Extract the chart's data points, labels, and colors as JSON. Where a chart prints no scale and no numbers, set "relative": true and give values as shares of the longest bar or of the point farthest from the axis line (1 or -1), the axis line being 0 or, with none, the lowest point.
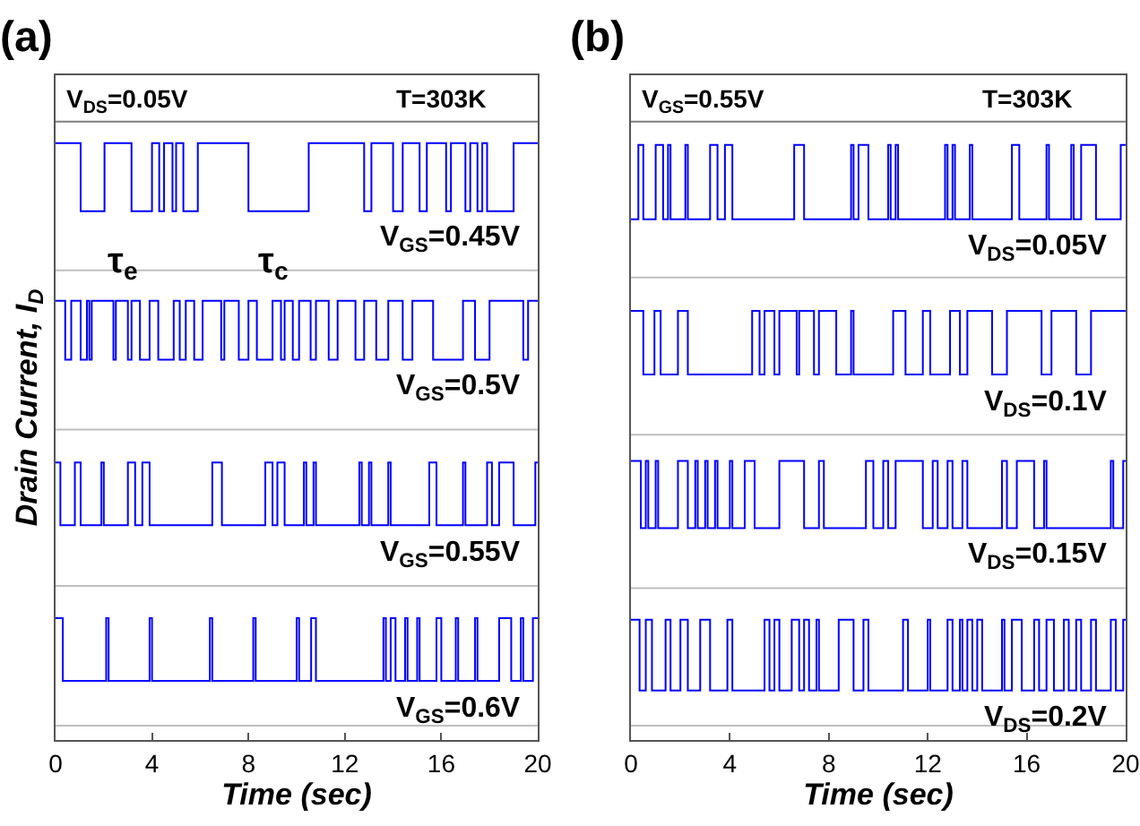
{
  "chart_data": [
    {
      "type": "step",
      "title": "(a)",
      "xlabel": "Time (sec)",
      "ylabel": "Drain Current, I$_{D}$",
      "relative": true,
      "xlim": [
        0,
        20
      ],
      "xticks": [
        0,
        4,
        8,
        12,
        16,
        20
      ],
      "grid": false,
      "legend": false,
      "tick_labels": "x",
      "annotations": [
        "V$_{DS}$=0.05V",
        "T=303K",
        "τ$_{e}$",
        "τ$_{c}$"
      ],
      "ref_lines": [
        {
          "axis": "y",
          "value": 1.036,
          "color": "#7f7f7f"
        },
        {
          "axis": "y",
          "value": 0.787,
          "color": "#bfbfbf"
        },
        {
          "axis": "y",
          "value": 0.52,
          "color": "#bfbfbf"
        },
        {
          "axis": "y",
          "value": 0.258,
          "color": "#bfbfbf"
        },
        {
          "axis": "y",
          "value": 0.024,
          "color": "#bfbfbf"
        }
      ],
      "series": [
        {
          "name": "V$_{GS}$=0.45V",
          "color": "#0000ff",
          "x": [
            0,
            1.04,
            2.03,
            3.15,
            4.0,
            4.3,
            4.5,
            4.85,
            5.0,
            5.3,
            5.9,
            8.0,
            10.5,
            12.8,
            13.1,
            14.0,
            14.4,
            15.1,
            15.4,
            16.2,
            16.4,
            17.0,
            17.2,
            17.5,
            17.7,
            17.9,
            19.0,
            20
          ],
          "values": [
            1,
            0.886,
            1,
            0.886,
            1,
            0.886,
            1,
            0.886,
            1,
            0.886,
            1,
            0.886,
            1,
            0.886,
            1,
            0.886,
            1,
            0.886,
            1,
            0.886,
            1,
            0.886,
            1,
            0.886,
            1,
            0.886,
            1,
            1
          ]
        },
        {
          "name": "V$_{GS}$=0.5V",
          "color": "#0000ff",
          "x": [
            0,
            0.4,
            0.65,
            1.04,
            1.3,
            1.4,
            1.5,
            2.4,
            2.5,
            3.0,
            3.15,
            3.5,
            3.9,
            4.26,
            4.9,
            5.15,
            5.4,
            5.75,
            6.1,
            6.87,
            7.0,
            7.6,
            8.0,
            8.35,
            9.0,
            9.35,
            9.5,
            9.84,
            10.1,
            10.58,
            10.8,
            11.33,
            11.7,
            12.44,
            12.8,
            13.3,
            13.8,
            14.4,
            14.8,
            15.66,
            16.9,
            17.4,
            18.0,
            19.4,
            19.6,
            20
          ],
          "values": [
            0.736,
            0.637,
            0.736,
            0.637,
            0.736,
            0.637,
            0.736,
            0.637,
            0.736,
            0.637,
            0.736,
            0.637,
            0.736,
            0.637,
            0.736,
            0.637,
            0.736,
            0.637,
            0.736,
            0.637,
            0.736,
            0.637,
            0.736,
            0.637,
            0.736,
            0.637,
            0.736,
            0.637,
            0.736,
            0.637,
            0.736,
            0.637,
            0.736,
            0.637,
            0.736,
            0.637,
            0.736,
            0.637,
            0.736,
            0.637,
            0.736,
            0.637,
            0.736,
            0.637,
            0.736,
            0.736
          ]
        },
        {
          "name": "V$_{GS}$=0.55V",
          "color": "#0000ff",
          "x": [
            0,
            0.2,
            0.8,
            1.04,
            1.9,
            2.0,
            3.0,
            3.3,
            3.6,
            3.9,
            6.5,
            6.9,
            8.7,
            9.0,
            9.2,
            9.5,
            10.3,
            10.4,
            10.7,
            10.8,
            12.6,
            12.7,
            13.0,
            13.1,
            13.8,
            13.9,
            15.5,
            15.8,
            16.9,
            17.0,
            17.9,
            18.1,
            18.4,
            19.0,
            19.9,
            20
          ],
          "values": [
            0.465,
            0.36,
            0.465,
            0.36,
            0.465,
            0.36,
            0.465,
            0.36,
            0.465,
            0.36,
            0.465,
            0.36,
            0.465,
            0.36,
            0.465,
            0.36,
            0.465,
            0.36,
            0.465,
            0.36,
            0.465,
            0.36,
            0.465,
            0.36,
            0.465,
            0.36,
            0.465,
            0.36,
            0.465,
            0.36,
            0.465,
            0.36,
            0.465,
            0.36,
            0.465,
            0.465
          ]
        },
        {
          "name": "V$_{GS}$=0.6V",
          "color": "#0000ff",
          "x": [
            0,
            0.3,
            2.1,
            2.2,
            3.9,
            4.0,
            6.4,
            6.5,
            8.2,
            8.3,
            10.0,
            10.1,
            10.6,
            10.8,
            13.6,
            13.7,
            13.9,
            14.1,
            14.5,
            14.6,
            15.0,
            15.1,
            15.8,
            16.0,
            16.6,
            16.7,
            17.4,
            17.5,
            18.4,
            18.9,
            19.3,
            19.4,
            19.8,
            20
          ],
          "values": [
            0.204,
            0.099,
            0.204,
            0.099,
            0.204,
            0.099,
            0.204,
            0.099,
            0.204,
            0.099,
            0.204,
            0.099,
            0.204,
            0.099,
            0.204,
            0.099,
            0.204,
            0.099,
            0.204,
            0.099,
            0.204,
            0.099,
            0.204,
            0.099,
            0.204,
            0.099,
            0.204,
            0.099,
            0.204,
            0.099,
            0.204,
            0.099,
            0.204,
            0.204
          ]
        }
      ]
    },
    {
      "type": "step",
      "title": "(b)",
      "xlabel": "Time (sec)",
      "relative": true,
      "xlim": [
        0,
        20
      ],
      "xticks": [
        0,
        4,
        8,
        12,
        16,
        20
      ],
      "grid": false,
      "legend": false,
      "tick_labels": "x",
      "annotations": [
        "V$_{GS}$=0.55V",
        "T=303K"
      ],
      "ref_lines": [
        {
          "axis": "y",
          "value": 1.039,
          "color": "#7f7f7f"
        },
        {
          "axis": "y",
          "value": 0.777,
          "color": "#bfbfbf"
        },
        {
          "axis": "y",
          "value": 0.513,
          "color": "#bfbfbf"
        },
        {
          "axis": "y",
          "value": 0.255,
          "color": "#bfbfbf"
        },
        {
          "axis": "y",
          "value": 0.024,
          "color": "#bfbfbf"
        }
      ],
      "series": [
        {
          "name": "V$_{DS}$=0.05V",
          "color": "#0000ff",
          "x": [
            0,
            0.3,
            0.5,
            1.0,
            1.3,
            1.5,
            1.6,
            2.2,
            2.3,
            3.2,
            3.5,
            3.8,
            4.1,
            6.6,
            7.0,
            8.9,
            9.0,
            9.2,
            9.6,
            10.4,
            10.5,
            10.7,
            10.8,
            12.7,
            12.8,
            13.0,
            13.1,
            13.7,
            13.8,
            15.4,
            15.7,
            16.8,
            16.9,
            17.8,
            17.9,
            18.2,
            18.8,
            19.8,
            20
          ],
          "values": [
            0.875,
            1,
            0.875,
            1,
            0.875,
            1,
            0.875,
            1,
            0.875,
            1,
            0.875,
            1,
            0.875,
            1,
            0.875,
            1,
            0.875,
            1,
            0.875,
            1,
            0.875,
            1,
            0.875,
            1,
            0.875,
            1,
            0.875,
            1,
            0.875,
            1,
            0.875,
            1,
            0.875,
            1,
            0.875,
            1,
            0.875,
            1,
            1
          ]
        },
        {
          "name": "V$_{DS}$=0.1V",
          "color": "#0000ff",
          "x": [
            0,
            0.5,
            0.95,
            1.2,
            1.9,
            2.3,
            4.9,
            5.2,
            5.4,
            5.8,
            6.0,
            6.7,
            6.8,
            7.4,
            7.6,
            8.3,
            8.9,
            9.0,
            10.6,
            11.1,
            11.8,
            12.1,
            12.9,
            13.3,
            13.6,
            14.6,
            15.2,
            16.6,
            17.0,
            18.0,
            18.6,
            20
          ],
          "values": [
            0.721,
            0.614,
            0.721,
            0.614,
            0.721,
            0.614,
            0.721,
            0.614,
            0.721,
            0.614,
            0.721,
            0.614,
            0.721,
            0.614,
            0.721,
            0.614,
            0.721,
            0.614,
            0.721,
            0.614,
            0.721,
            0.614,
            0.721,
            0.614,
            0.721,
            0.614,
            0.721,
            0.614,
            0.721,
            0.614,
            0.721,
            0.721
          ]
        },
        {
          "name": "V$_{DS}$=0.15V",
          "color": "#0000ff",
          "x": [
            0,
            0.4,
            0.6,
            0.7,
            1.0,
            1.1,
            1.9,
            2.3,
            2.6,
            2.7,
            3.0,
            3.1,
            3.4,
            3.5,
            4.0,
            4.1,
            4.6,
            5.0,
            6.0,
            7.0,
            7.6,
            7.8,
            9.5,
            9.8,
            10.2,
            10.4,
            10.7,
            11.8,
            12.2,
            12.4,
            12.8,
            13.0,
            13.4,
            13.6,
            15.0,
            15.2,
            15.6,
            16.3,
            16.7,
            16.8,
            19.4,
            19.5,
            19.9,
            20
          ],
          "values": [
            0.469,
            0.356,
            0.469,
            0.356,
            0.469,
            0.356,
            0.469,
            0.356,
            0.469,
            0.356,
            0.469,
            0.356,
            0.469,
            0.356,
            0.469,
            0.356,
            0.469,
            0.356,
            0.469,
            0.356,
            0.469,
            0.356,
            0.469,
            0.356,
            0.469,
            0.356,
            0.469,
            0.356,
            0.469,
            0.356,
            0.469,
            0.356,
            0.469,
            0.356,
            0.469,
            0.356,
            0.469,
            0.356,
            0.469,
            0.356,
            0.469,
            0.356,
            0.469,
            0.469
          ]
        },
        {
          "name": "V$_{DS}$=0.2V",
          "color": "#0000ff",
          "x": [
            0,
            0.35,
            0.6,
            0.85,
            1.4,
            1.6,
            2.0,
            2.3,
            2.8,
            3.2,
            3.9,
            4.1,
            5.4,
            5.6,
            5.8,
            6.0,
            6.5,
            6.8,
            7.0,
            7.2,
            7.5,
            7.6,
            8.4,
            9.0,
            9.4,
            9.6,
            11.0,
            11.2,
            12.0,
            12.1,
            12.8,
            13.0,
            13.3,
            13.4,
            13.6,
            13.8,
            14.0,
            14.2,
            15.0,
            15.1,
            15.4,
            15.8,
            16.3,
            16.5,
            16.8,
            17.1,
            17.5,
            17.7,
            18.0,
            18.2,
            18.6,
            18.8,
            19.4,
            19.6,
            19.9,
            20
          ],
          "values": [
            0.202,
            0.083,
            0.202,
            0.083,
            0.202,
            0.083,
            0.202,
            0.083,
            0.202,
            0.083,
            0.202,
            0.083,
            0.202,
            0.083,
            0.202,
            0.083,
            0.202,
            0.083,
            0.202,
            0.083,
            0.202,
            0.083,
            0.202,
            0.083,
            0.202,
            0.083,
            0.202,
            0.083,
            0.202,
            0.083,
            0.202,
            0.083,
            0.202,
            0.083,
            0.202,
            0.083,
            0.202,
            0.083,
            0.202,
            0.083,
            0.202,
            0.083,
            0.202,
            0.083,
            0.202,
            0.083,
            0.202,
            0.083,
            0.202,
            0.083,
            0.202,
            0.083,
            0.202,
            0.083,
            0.202,
            0.202
          ]
        }
      ]
    }
  ]
}
